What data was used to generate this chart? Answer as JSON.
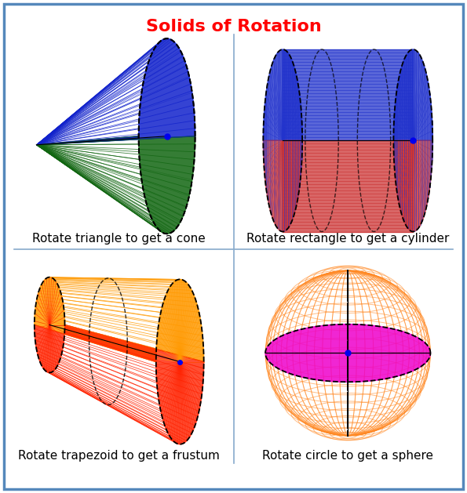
{
  "title": "Solids of Rotation",
  "title_color": "#FF0000",
  "title_fontsize": 16,
  "background_color": "#FFFFFF",
  "border_color": "#5588BB",
  "divider_color": "#88AACC",
  "labels": [
    "Rotate triangle to get a cone",
    "Rotate rectangle to get a cylinder",
    "Rotate trapezoid to get a frustum",
    "Rotate circle to get a sphere"
  ],
  "label_fontsize": 11,
  "cone_color_blue": "#1122CC",
  "cone_color_green": "#116611",
  "cylinder_color_blue": "#2233CC",
  "cylinder_color_red": "#CC3333",
  "frustum_color_orange": "#FF9900",
  "frustum_color_red": "#FF2200",
  "sphere_color_orange": "#FF8822",
  "sphere_color_magenta": "#EE00CC",
  "dot_color": "#0000EE",
  "line_color_dark": "#000000"
}
